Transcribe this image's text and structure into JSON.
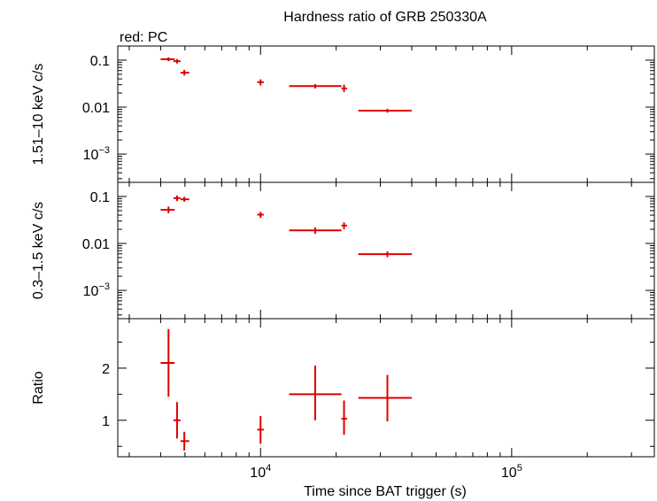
{
  "chart_data": {
    "type": "scatter",
    "title": "Hardness ratio of GRB 250330A",
    "subtitle": "red: PC",
    "xlabel": "Time since BAT trigger (s)",
    "x_scale": "log",
    "xlim": [
      2700,
      370000
    ],
    "x_tick_labels": [
      {
        "base": "10",
        "exp": "4",
        "value": 10000
      },
      {
        "base": "10",
        "exp": "5",
        "value": 100000
      }
    ],
    "series_color": "#e00000",
    "panels": [
      {
        "id": "hard",
        "ylabel": "1.51–10 keV c/s",
        "y_scale": "log",
        "ylim": [
          0.00025,
          0.2
        ],
        "y_tick_labels": [
          {
            "text": "0.1",
            "value": 0.1
          },
          {
            "text": "0.01",
            "value": 0.01
          },
          {
            "base": "10",
            "exp": "−3",
            "value": 0.001
          }
        ],
        "points": [
          {
            "x": 4300,
            "x_lo": 4000,
            "x_hi": 4550,
            "y": 0.105,
            "y_lo": 0.095,
            "y_hi": 0.115
          },
          {
            "x": 4650,
            "x_lo": 4500,
            "x_hi": 4800,
            "y": 0.095,
            "y_lo": 0.085,
            "y_hi": 0.106
          },
          {
            "x": 4970,
            "x_lo": 4800,
            "x_hi": 5200,
            "y": 0.054,
            "y_lo": 0.047,
            "y_hi": 0.062
          },
          {
            "x": 10000,
            "x_lo": 9700,
            "x_hi": 10300,
            "y": 0.034,
            "y_lo": 0.029,
            "y_hi": 0.039
          },
          {
            "x": 16500,
            "x_lo": 13000,
            "x_hi": 21000,
            "y": 0.028,
            "y_lo": 0.025,
            "y_hi": 0.031
          },
          {
            "x": 21500,
            "x_lo": 21000,
            "x_hi": 22100,
            "y": 0.025,
            "y_lo": 0.021,
            "y_hi": 0.03
          },
          {
            "x": 32000,
            "x_lo": 24500,
            "x_hi": 40000,
            "y": 0.0084,
            "y_lo": 0.0076,
            "y_hi": 0.0092
          }
        ]
      },
      {
        "id": "soft",
        "ylabel": "0.3–1.5 keV c/s",
        "y_scale": "log",
        "ylim": [
          0.00025,
          0.2
        ],
        "y_tick_labels": [
          {
            "text": "0.1",
            "value": 0.1
          },
          {
            "text": "0.01",
            "value": 0.01
          },
          {
            "base": "10",
            "exp": "−3",
            "value": 0.001
          }
        ],
        "points": [
          {
            "x": 4300,
            "x_lo": 4000,
            "x_hi": 4550,
            "y": 0.052,
            "y_lo": 0.044,
            "y_hi": 0.061
          },
          {
            "x": 4650,
            "x_lo": 4500,
            "x_hi": 4800,
            "y": 0.092,
            "y_lo": 0.08,
            "y_hi": 0.105
          },
          {
            "x": 4970,
            "x_lo": 4800,
            "x_hi": 5200,
            "y": 0.087,
            "y_lo": 0.077,
            "y_hi": 0.098
          },
          {
            "x": 10000,
            "x_lo": 9700,
            "x_hi": 10300,
            "y": 0.041,
            "y_lo": 0.035,
            "y_hi": 0.047
          },
          {
            "x": 16500,
            "x_lo": 13000,
            "x_hi": 21000,
            "y": 0.019,
            "y_lo": 0.016,
            "y_hi": 0.022
          },
          {
            "x": 21500,
            "x_lo": 21000,
            "x_hi": 22100,
            "y": 0.024,
            "y_lo": 0.02,
            "y_hi": 0.028
          },
          {
            "x": 32000,
            "x_lo": 24500,
            "x_hi": 40000,
            "y": 0.0059,
            "y_lo": 0.0051,
            "y_hi": 0.0068
          }
        ]
      },
      {
        "id": "ratio",
        "ylabel": "Ratio",
        "y_scale": "linear",
        "ylim": [
          0.3,
          2.95
        ],
        "y_tick_labels": [
          {
            "text": "2",
            "value": 2
          },
          {
            "text": "1",
            "value": 1
          }
        ],
        "points": [
          {
            "x": 4300,
            "x_lo": 4000,
            "x_hi": 4550,
            "y": 2.1,
            "y_lo": 1.45,
            "y_hi": 2.75
          },
          {
            "x": 4650,
            "x_lo": 4500,
            "x_hi": 4800,
            "y": 1.0,
            "y_lo": 0.65,
            "y_hi": 1.35
          },
          {
            "x": 4970,
            "x_lo": 4800,
            "x_hi": 5200,
            "y": 0.6,
            "y_lo": 0.42,
            "y_hi": 0.78
          },
          {
            "x": 10000,
            "x_lo": 9700,
            "x_hi": 10300,
            "y": 0.82,
            "y_lo": 0.55,
            "y_hi": 1.08
          },
          {
            "x": 16500,
            "x_lo": 13000,
            "x_hi": 21000,
            "y": 1.5,
            "y_lo": 1.0,
            "y_hi": 2.05
          },
          {
            "x": 21500,
            "x_lo": 21000,
            "x_hi": 22100,
            "y": 1.03,
            "y_lo": 0.72,
            "y_hi": 1.38
          },
          {
            "x": 32000,
            "x_lo": 24500,
            "x_hi": 40000,
            "y": 1.43,
            "y_lo": 0.98,
            "y_hi": 1.87
          }
        ]
      }
    ]
  }
}
